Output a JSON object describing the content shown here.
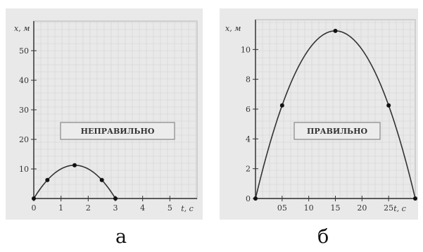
{
  "colors": {
    "panel_bg": "#e9e9e9",
    "frame": "#cfcfcf",
    "grid": "#d2d2d2",
    "curve": "#333333",
    "box_bg": "#ececec",
    "box_border": "#888888"
  },
  "chart_data": [
    {
      "type": "line",
      "panel_caption": "а",
      "ylabel": "x, м",
      "xlabel": "t, c",
      "xlim": [
        0,
        6
      ],
      "ylim": [
        0,
        60
      ],
      "xticks": [
        0,
        1,
        2,
        3,
        4,
        5
      ],
      "xtick_labels": [
        "0",
        "1",
        "2",
        "3",
        "4",
        "5"
      ],
      "yticks": [
        10,
        20,
        30,
        40,
        50
      ],
      "ytick_labels": [
        "10",
        "20",
        "30",
        "40",
        "50"
      ],
      "grid": true,
      "annotation": "НЕПРАВИЛЬНО",
      "curve": {
        "t_start": 0,
        "t_end": 3,
        "x_max": 11.25,
        "t_peak": 1.5
      },
      "points": [
        {
          "x": 0,
          "y": 0
        },
        {
          "x": 0.5,
          "y": 6.25
        },
        {
          "x": 1.5,
          "y": 11.25
        },
        {
          "x": 2.5,
          "y": 6.25
        },
        {
          "x": 3,
          "y": 0
        }
      ]
    },
    {
      "type": "line",
      "panel_caption": "б",
      "ylabel": "x, м",
      "xlabel": "t, c",
      "xlim": [
        0,
        3
      ],
      "ylim": [
        0,
        12
      ],
      "xticks": [
        0.5,
        1.0,
        1.5,
        2.0,
        2.5
      ],
      "xtick_labels": [
        "05",
        "10",
        "15",
        "20",
        "25"
      ],
      "yticks": [
        0,
        2,
        4,
        6,
        8,
        10
      ],
      "ytick_labels": [
        "0",
        "2",
        "4",
        "6",
        "8",
        "10"
      ],
      "grid": true,
      "annotation": "ПРАВИЛЬНО",
      "curve": {
        "t_start": 0,
        "t_end": 3,
        "x_max": 11.25,
        "t_peak": 1.5
      },
      "points": [
        {
          "x": 0,
          "y": 0
        },
        {
          "x": 0.5,
          "y": 6.25
        },
        {
          "x": 1.5,
          "y": 11.25
        },
        {
          "x": 2.5,
          "y": 6.25
        },
        {
          "x": 3,
          "y": 0
        }
      ]
    }
  ]
}
